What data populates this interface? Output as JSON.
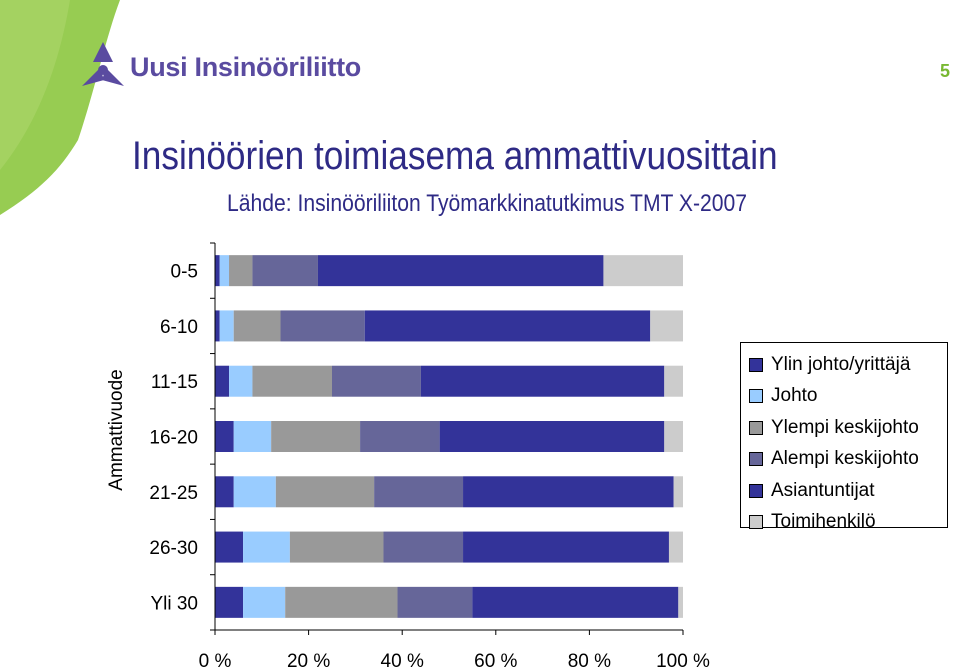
{
  "header": {
    "logo_text": "Uusi Insinööriliitto",
    "page_number": "5",
    "brand_color": "#5a4ba0",
    "accent_color": "#78b832"
  },
  "title": "Insinöörien toimiasema ammattivuosittain",
  "subtitle": "Lähde: Insinööriliiton Työmarkkinatutkimus TMT X-2007",
  "chart_data": {
    "type": "bar",
    "orientation": "horizontal",
    "stacking": "percent",
    "categories": [
      "0-5",
      "6-10",
      "11-15",
      "16-20",
      "21-25",
      "26-30",
      "Yli 30"
    ],
    "ylabel": "Ammattivuode",
    "xlabel": "",
    "xlim": [
      0,
      100
    ],
    "x_ticks": [
      "0 %",
      "20 %",
      "40 %",
      "60 %",
      "80 %",
      "100 %"
    ],
    "grid": false,
    "legend_position": "right",
    "series": [
      {
        "name": "Ylin johto/yrittäjä",
        "color": "#33339a",
        "values": [
          1,
          1,
          3,
          4,
          4,
          6,
          6
        ]
      },
      {
        "name": "Johto",
        "color": "#99ccff",
        "values": [
          2,
          3,
          5,
          8,
          9,
          10,
          9
        ]
      },
      {
        "name": "Ylempi keskijohto",
        "color": "#999999",
        "values": [
          5,
          10,
          17,
          19,
          21,
          20,
          24
        ]
      },
      {
        "name": "Alempi keskijohto",
        "color": "#666699",
        "values": [
          14,
          18,
          19,
          17,
          19,
          17,
          16
        ]
      },
      {
        "name": "Asiantuntijat",
        "color": "#333399",
        "values": [
          61,
          61,
          52,
          48,
          45,
          44,
          44
        ]
      },
      {
        "name": "Toimihenkilö",
        "color": "#cccccc",
        "values": [
          17,
          7,
          4,
          4,
          2,
          3,
          1
        ]
      }
    ]
  }
}
